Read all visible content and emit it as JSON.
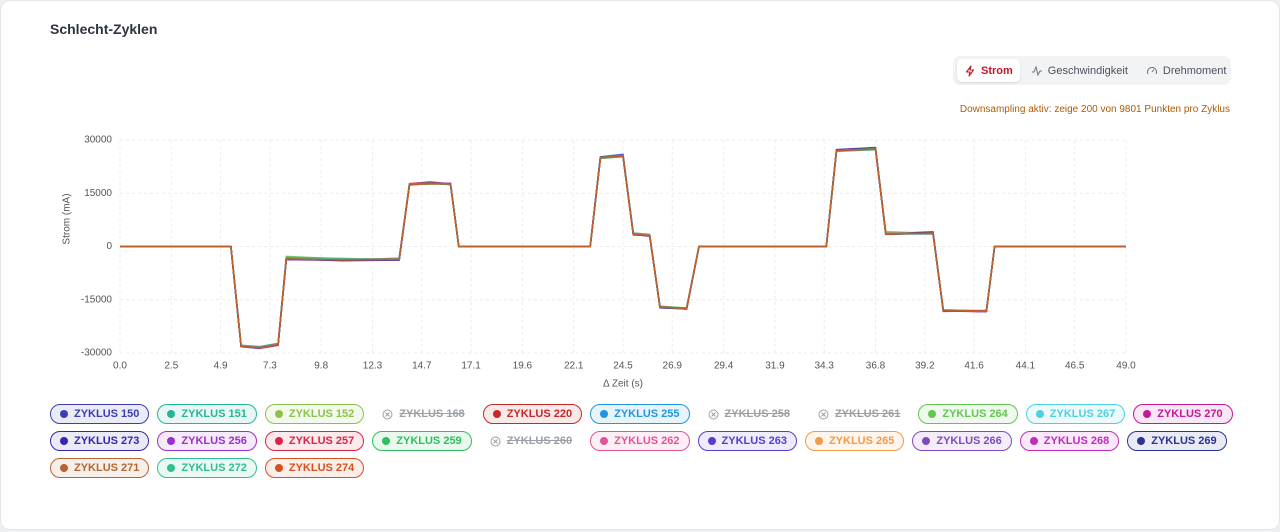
{
  "header": {
    "title": "Schlecht-Zyklen"
  },
  "tabs": [
    {
      "label": "Strom",
      "active": true
    },
    {
      "label": "Geschwindigkeit",
      "active": false
    },
    {
      "label": "Drehmoment",
      "active": false
    }
  ],
  "notice": "Downsampling aktiv: zeige 200 von 9801 Punkten pro Zyklus",
  "chart_data": {
    "type": "line",
    "x_label": "Δ Zeit (s)",
    "y_label": "Strom (mA)",
    "xlim": [
      0,
      49
    ],
    "ylim": [
      -30000,
      30000
    ],
    "xticks": [
      {
        "value": 0,
        "label": "0.0"
      },
      2.5,
      4.9,
      7.3,
      9.8,
      12.3,
      14.7,
      17.1,
      19.6,
      22.1,
      24.5,
      26.9,
      29.4,
      31.9,
      34.3,
      36.8,
      39.2,
      41.6,
      44.1,
      46.5,
      {
        "value": 49,
        "label": "49.0"
      }
    ],
    "yticks": [
      -30000,
      -15000,
      0,
      15000,
      30000
    ],
    "grid": true,
    "x": [
      0,
      5.4,
      5.9,
      6.8,
      7.7,
      8.1,
      10.8,
      13.6,
      14.1,
      15.1,
      16.1,
      16.5,
      22.9,
      23.4,
      24.5,
      25.0,
      25.8,
      26.3,
      27.6,
      28.2,
      34.4,
      34.9,
      36.8,
      37.3,
      39.6,
      40.1,
      42.2,
      42.6,
      49.0
    ],
    "series": [
      {
        "name": "ZYKLUS 150",
        "color": "#3b3db3",
        "values": [
          0,
          0,
          -28000,
          -28400,
          -27600,
          -3400,
          -3900,
          -3500,
          17600,
          17900,
          17500,
          0,
          0,
          25100,
          25600,
          3400,
          3100,
          -17100,
          -17400,
          0,
          0,
          27100,
          27600,
          3500,
          3900,
          -18100,
          -18200,
          0,
          0
        ]
      },
      {
        "name": "ZYKLUS 151",
        "color": "#26b597",
        "values": [
          0,
          0,
          -27900,
          -28300,
          -27400,
          -3000,
          -3600,
          -3700,
          17400,
          17700,
          17700,
          0,
          0,
          24900,
          25400,
          3600,
          2900,
          -16900,
          -17600,
          0,
          0,
          26900,
          27400,
          3400,
          3700,
          -17900,
          -18300,
          0,
          0
        ]
      },
      {
        "name": "ZYKLUS 152",
        "color": "#8bc34a",
        "values": [
          0,
          0,
          -28100,
          -28600,
          -27700,
          -3200,
          -3300,
          -3800,
          17500,
          17600,
          17800,
          0,
          0,
          25000,
          25700,
          3700,
          3200,
          -17200,
          -17300,
          0,
          0,
          27000,
          27700,
          3900,
          3600,
          -18000,
          -18100,
          0,
          0
        ]
      },
      {
        "name": "ZYKLUS 168",
        "color": "#9aa0a6",
        "hidden": true
      },
      {
        "name": "ZYKLUS 220",
        "color": "#c62828",
        "values": [
          0,
          0,
          -28200,
          -28700,
          -27800,
          -3600,
          -3700,
          -3400,
          17700,
          18100,
          17600,
          0,
          0,
          25200,
          25500,
          3300,
          3000,
          -17000,
          -17700,
          0,
          0,
          27200,
          27800,
          3600,
          3800,
          -18100,
          -18400,
          0,
          0
        ]
      },
      {
        "name": "ZYKLUS 255",
        "color": "#2196e0",
        "values": [
          0,
          0,
          -27800,
          -28200,
          -27300,
          -3300,
          -3800,
          -3900,
          17300,
          17800,
          17400,
          0,
          0,
          25300,
          26000,
          3800,
          3400,
          -17300,
          -17500,
          0,
          0,
          27300,
          27500,
          3700,
          4000,
          -18300,
          -18000,
          0,
          0
        ]
      },
      {
        "name": "ZYKLUS 258",
        "color": "#9aa0a6",
        "hidden": true
      },
      {
        "name": "ZYKLUS 261",
        "color": "#9aa0a6",
        "hidden": true
      },
      {
        "name": "ZYKLUS 264",
        "color": "#62c84f",
        "values": [
          0,
          0,
          -28000,
          -28500,
          -27500,
          -2800,
          -3500,
          -3600,
          17600,
          17700,
          17500,
          0,
          0,
          25000,
          25300,
          3500,
          3100,
          -16800,
          -17400,
          0,
          0,
          27000,
          27300,
          4200,
          3700,
          -17800,
          -18200,
          0,
          0
        ]
      },
      {
        "name": "ZYKLUS 267",
        "color": "#4dd0e1",
        "values": [
          0,
          0,
          -27900,
          -28400,
          -27600,
          -3500,
          -3700,
          -3500,
          17500,
          17900,
          17700,
          0,
          0,
          25100,
          25500,
          3600,
          3000,
          -17100,
          -17600,
          0,
          0,
          27100,
          27600,
          3500,
          3600,
          -18000,
          -18300,
          0,
          0
        ]
      },
      {
        "name": "ZYKLUS 270",
        "color": "#c2189c",
        "values": [
          0,
          0,
          -28100,
          -28500,
          -27600,
          -3700,
          -3900,
          -3700,
          17400,
          17800,
          17600,
          0,
          0,
          24900,
          25600,
          3400,
          2900,
          -17000,
          -17500,
          0,
          0,
          26900,
          27500,
          3400,
          3900,
          -18200,
          -18100,
          0,
          0
        ]
      },
      {
        "name": "ZYKLUS 273",
        "color": "#3428a8",
        "values": [
          0,
          0,
          -28000,
          -28600,
          -27700,
          -3400,
          -4000,
          -3800,
          17600,
          18000,
          17500,
          0,
          0,
          25000,
          25400,
          3500,
          3200,
          -17200,
          -17600,
          0,
          0,
          27200,
          27700,
          3600,
          4100,
          -18100,
          -18200,
          0,
          0
        ]
      },
      {
        "name": "ZYKLUS 256",
        "color": "#9c2fc9",
        "values": [
          0,
          0,
          -28200,
          -28400,
          -27500,
          -3600,
          -3600,
          -3500,
          17500,
          17700,
          17800,
          0,
          0,
          25200,
          25500,
          3700,
          3100,
          -17100,
          -17400,
          0,
          0,
          27000,
          27400,
          3500,
          3800,
          -18000,
          -18400,
          0,
          0
        ]
      },
      {
        "name": "ZYKLUS 257",
        "color": "#dc2348",
        "values": [
          0,
          0,
          -27900,
          -28500,
          -27800,
          -3500,
          -3800,
          -3300,
          17700,
          18200,
          17600,
          0,
          0,
          25100,
          25700,
          3300,
          3000,
          -17000,
          -17500,
          0,
          0,
          27100,
          27800,
          3800,
          3700,
          -18200,
          -18300,
          0,
          0
        ]
      },
      {
        "name": "ZYKLUS 259",
        "color": "#2fbf5e",
        "values": [
          0,
          0,
          -28000,
          -28300,
          -27400,
          -3100,
          -3500,
          -3700,
          17400,
          17600,
          17700,
          0,
          0,
          24800,
          25300,
          3600,
          3300,
          -16900,
          -17300,
          0,
          0,
          26800,
          27300,
          3700,
          3500,
          -17900,
          -18100,
          0,
          0
        ]
      },
      {
        "name": "ZYKLUS 260",
        "color": "#9aa0a6",
        "hidden": true
      },
      {
        "name": "ZYKLUS 262",
        "color": "#e0559a",
        "values": [
          0,
          0,
          -28100,
          -28600,
          -27600,
          -3400,
          -3700,
          -3600,
          17500,
          17800,
          17500,
          0,
          0,
          25000,
          25500,
          3500,
          3000,
          -17100,
          -17600,
          0,
          0,
          27000,
          27500,
          3600,
          3800,
          -18000,
          -18200,
          0,
          0
        ]
      },
      {
        "name": "ZYKLUS 263",
        "color": "#5a3bd0",
        "values": [
          0,
          0,
          -28000,
          -28400,
          -27700,
          -3600,
          -3900,
          -3800,
          17600,
          17900,
          17600,
          0,
          0,
          25200,
          25800,
          3400,
          3100,
          -17200,
          -17500,
          0,
          0,
          27300,
          27900,
          3500,
          3900,
          -18100,
          -18300,
          0,
          0
        ]
      },
      {
        "name": "ZYKLUS 265",
        "color": "#f29a4a",
        "values": [
          0,
          0,
          -27900,
          -28500,
          -27500,
          -3300,
          -3600,
          -3400,
          17500,
          17700,
          17700,
          0,
          0,
          24900,
          25400,
          3700,
          3200,
          -17000,
          -17400,
          0,
          0,
          26900,
          27600,
          4000,
          3600,
          -18000,
          -18100,
          0,
          0
        ]
      },
      {
        "name": "ZYKLUS 266",
        "color": "#7e4bc0",
        "values": [
          0,
          0,
          -28200,
          -28700,
          -27600,
          -3500,
          -3800,
          -3700,
          17400,
          17800,
          17500,
          0,
          0,
          25100,
          25600,
          3500,
          3000,
          -17100,
          -17600,
          0,
          0,
          27100,
          27600,
          3600,
          3800,
          -18200,
          -18200,
          0,
          0
        ]
      },
      {
        "name": "ZYKLUS 268",
        "color": "#c02cc0",
        "values": [
          0,
          0,
          -28000,
          -28400,
          -27500,
          -3400,
          -3700,
          -3500,
          17600,
          17900,
          17600,
          0,
          0,
          25000,
          25500,
          3600,
          3100,
          -17000,
          -17500,
          0,
          0,
          27000,
          27500,
          3500,
          3700,
          -18100,
          -18300,
          0,
          0
        ]
      },
      {
        "name": "ZYKLUS 269",
        "color": "#2a3590",
        "values": [
          0,
          0,
          -28100,
          -28500,
          -27700,
          -3600,
          -3800,
          -3600,
          17500,
          17800,
          17700,
          0,
          0,
          25100,
          25500,
          3400,
          3000,
          -17200,
          -17500,
          0,
          0,
          27200,
          27700,
          3600,
          3900,
          -18100,
          -18200,
          0,
          0
        ]
      },
      {
        "name": "ZYKLUS 271",
        "color": "#b5662e",
        "values": [
          0,
          0,
          -28000,
          -28600,
          -27600,
          -3500,
          -3700,
          -3600,
          17500,
          17700,
          17600,
          0,
          0,
          25000,
          25400,
          3500,
          3100,
          -17100,
          -17400,
          0,
          0,
          27100,
          27500,
          3500,
          3800,
          -18000,
          -18200,
          0,
          0
        ]
      },
      {
        "name": "ZYKLUS 272",
        "color": "#2ec08f",
        "values": [
          0,
          0,
          -27900,
          -28400,
          -27500,
          -3300,
          -3600,
          -3500,
          17600,
          17900,
          17500,
          0,
          0,
          25100,
          25600,
          3600,
          3000,
          -17000,
          -17600,
          0,
          0,
          27000,
          27600,
          3700,
          3700,
          -18000,
          -18300,
          0,
          0
        ]
      },
      {
        "name": "ZYKLUS 274",
        "color": "#d4521f",
        "values": [
          0,
          0,
          -28100,
          -28500,
          -27600,
          -3500,
          -3800,
          -3600,
          17500,
          17800,
          17600,
          0,
          0,
          25000,
          25500,
          3500,
          3000,
          -17000,
          -17500,
          0,
          0,
          27000,
          27500,
          3500,
          3800,
          -18000,
          -18200,
          0,
          0
        ]
      }
    ]
  }
}
